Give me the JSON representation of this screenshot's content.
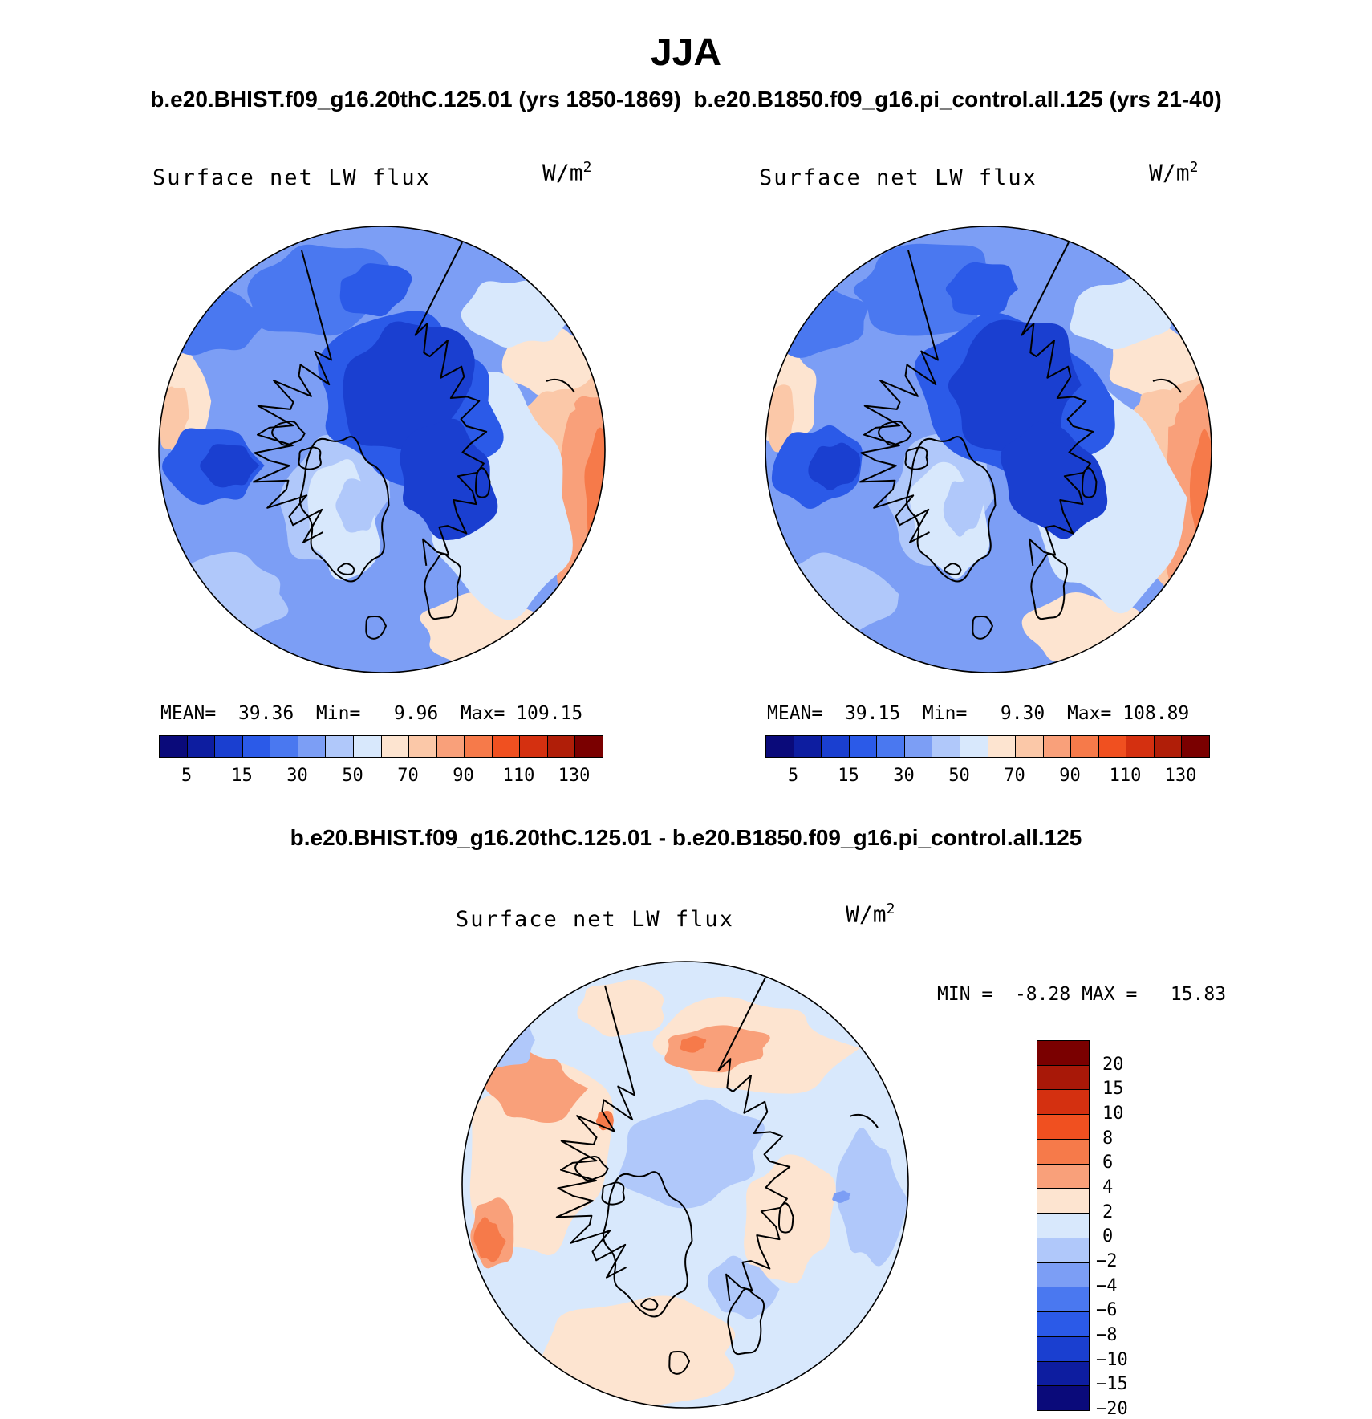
{
  "figure": {
    "title": "JJA",
    "subtitle_left": "b.e20.BHIST.f09_g16.20thC.125.01 (yrs 1850-1869)",
    "subtitle_right": "b.e20.B1850.f09_g16.pi_control.all.125 (yrs 21-40)",
    "diff_title": "b.e20.BHIST.f09_g16.20thC.125.01 - b.e20.B1850.f09_g16.pi_control.all.125"
  },
  "panels": {
    "left": {
      "variable": "Surface net LW flux",
      "units_base": "W/m",
      "units_exp": "2",
      "mean_label": "MEAN=",
      "mean": "39.36",
      "min_label": "Min=",
      "min": "9.96",
      "max_label": "Max=",
      "max": "109.15"
    },
    "right": {
      "variable": "Surface net LW flux",
      "units_base": "W/m",
      "units_exp": "2",
      "mean_label": "MEAN=",
      "mean": "39.15",
      "min_label": "Min=",
      "min": "9.30",
      "max_label": "Max=",
      "max": "108.89"
    },
    "diff": {
      "variable": "Surface net LW flux",
      "units_base": "W/m",
      "units_exp": "2",
      "min_label": "MIN =",
      "min": "-8.28",
      "max_label": "MAX =",
      "max": "15.83"
    }
  },
  "chart_data": [
    {
      "type": "heatmap",
      "projection": "north-polar-stereographic",
      "title": "Surface net LW flux",
      "case": "b.e20.BHIST.f09_g16.20thC.125.01 (yrs 1850-1869)",
      "units": "W/m2",
      "mean": 39.36,
      "min": 9.96,
      "max": 109.15,
      "colorbar_ticks": [
        5,
        15,
        30,
        50,
        70,
        90,
        110,
        130
      ]
    },
    {
      "type": "heatmap",
      "projection": "north-polar-stereographic",
      "title": "Surface net LW flux",
      "case": "b.e20.B1850.f09_g16.pi_control.all.125 (yrs 21-40)",
      "units": "W/m2",
      "mean": 39.15,
      "min": 9.3,
      "max": 108.89,
      "colorbar_ticks": [
        5,
        15,
        30,
        50,
        70,
        90,
        110,
        130
      ]
    },
    {
      "type": "heatmap",
      "projection": "north-polar-stereographic",
      "title": "Surface net LW flux",
      "case": "b.e20.BHIST.f09_g16.20thC.125.01 - b.e20.B1850.f09_g16.pi_control.all.125",
      "units": "W/m2",
      "min": -8.28,
      "max": 15.83,
      "colorbar_ticks": [
        "20",
        "15",
        "10",
        "8",
        "6",
        "4",
        "2",
        "0",
        "-2",
        "-4",
        "-6",
        "-8",
        "-10",
        "-15",
        "-20"
      ]
    }
  ],
  "colorbars": {
    "abs_colors": [
      "#0a0a7a",
      "#0d1da0",
      "#1a3fd0",
      "#2b5ae8",
      "#4a78f0",
      "#7c9ef5",
      "#b0c8fa",
      "#d8e8fc",
      "#fde4d0",
      "#fbc8a8",
      "#f9a07a",
      "#f67a4a",
      "#f05020",
      "#d43010",
      "#b01e08",
      "#7a0000"
    ],
    "abs_ticks": [
      "5",
      "15",
      "30",
      "50",
      "70",
      "90",
      "110",
      "130"
    ],
    "diff_colors": [
      "#7a0000",
      "#a81808",
      "#d43010",
      "#f05020",
      "#f67a4a",
      "#f9a07a",
      "#fde4d0",
      "#d8e8fc",
      "#b0c8fa",
      "#7c9ef5",
      "#4a78f0",
      "#2b5ae8",
      "#1a3fd0",
      "#0d1da0",
      "#0a0a7a"
    ],
    "diff_ticks": [
      "20",
      "15",
      "10",
      "8",
      "6",
      "4",
      "2",
      "0",
      "−2",
      "−4",
      "−6",
      "−8",
      "−10",
      "−15",
      "−20"
    ]
  }
}
